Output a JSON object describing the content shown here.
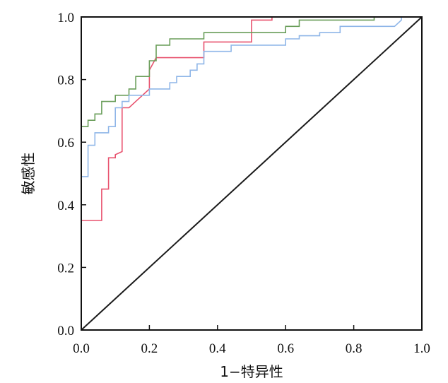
{
  "chart_data": {
    "type": "line",
    "title": "",
    "xlabel": "1−特异性",
    "ylabel": "敏感性",
    "xlim": [
      0,
      1
    ],
    "ylim": [
      0,
      1
    ],
    "xticks": [
      "0.0",
      "0.2",
      "0.4",
      "0.6",
      "0.8",
      "1.0"
    ],
    "yticks": [
      "0.0",
      "0.2",
      "0.4",
      "0.6",
      "0.8",
      "1.0"
    ],
    "grid": false,
    "legend": "none",
    "series": [
      {
        "color": "#e8526e",
        "points": [
          [
            0,
            0.35
          ],
          [
            0.06,
            0.35
          ],
          [
            0.06,
            0.45
          ],
          [
            0.08,
            0.45
          ],
          [
            0.08,
            0.55
          ],
          [
            0.1,
            0.55
          ],
          [
            0.1,
            0.56
          ],
          [
            0.12,
            0.57
          ],
          [
            0.12,
            0.71
          ],
          [
            0.14,
            0.71
          ],
          [
            0.16,
            0.73
          ],
          [
            0.2,
            0.77
          ],
          [
            0.2,
            0.83
          ],
          [
            0.22,
            0.87
          ],
          [
            0.36,
            0.87
          ],
          [
            0.36,
            0.92
          ],
          [
            0.5,
            0.92
          ],
          [
            0.5,
            0.99
          ],
          [
            0.56,
            0.99
          ],
          [
            0.56,
            1.0
          ]
        ]
      },
      {
        "color": "#6a9e5a",
        "points": [
          [
            0,
            0.65
          ],
          [
            0.02,
            0.65
          ],
          [
            0.02,
            0.67
          ],
          [
            0.04,
            0.67
          ],
          [
            0.04,
            0.69
          ],
          [
            0.06,
            0.69
          ],
          [
            0.06,
            0.73
          ],
          [
            0.1,
            0.73
          ],
          [
            0.1,
            0.75
          ],
          [
            0.14,
            0.75
          ],
          [
            0.14,
            0.77
          ],
          [
            0.16,
            0.77
          ],
          [
            0.16,
            0.81
          ],
          [
            0.2,
            0.81
          ],
          [
            0.2,
            0.86
          ],
          [
            0.22,
            0.86
          ],
          [
            0.22,
            0.91
          ],
          [
            0.26,
            0.91
          ],
          [
            0.26,
            0.93
          ],
          [
            0.36,
            0.93
          ],
          [
            0.36,
            0.95
          ],
          [
            0.6,
            0.95
          ],
          [
            0.6,
            0.97
          ],
          [
            0.64,
            0.97
          ],
          [
            0.64,
            0.99
          ],
          [
            0.86,
            0.99
          ],
          [
            0.86,
            1.0
          ]
        ]
      },
      {
        "color": "#8fb6e8",
        "points": [
          [
            0,
            0.49
          ],
          [
            0.02,
            0.49
          ],
          [
            0.02,
            0.59
          ],
          [
            0.04,
            0.59
          ],
          [
            0.04,
            0.63
          ],
          [
            0.08,
            0.63
          ],
          [
            0.08,
            0.65
          ],
          [
            0.1,
            0.65
          ],
          [
            0.1,
            0.71
          ],
          [
            0.12,
            0.71
          ],
          [
            0.12,
            0.73
          ],
          [
            0.14,
            0.73
          ],
          [
            0.14,
            0.75
          ],
          [
            0.2,
            0.75
          ],
          [
            0.2,
            0.77
          ],
          [
            0.26,
            0.77
          ],
          [
            0.26,
            0.79
          ],
          [
            0.28,
            0.79
          ],
          [
            0.28,
            0.81
          ],
          [
            0.32,
            0.81
          ],
          [
            0.32,
            0.83
          ],
          [
            0.34,
            0.83
          ],
          [
            0.34,
            0.85
          ],
          [
            0.36,
            0.85
          ],
          [
            0.36,
            0.89
          ],
          [
            0.44,
            0.89
          ],
          [
            0.44,
            0.91
          ],
          [
            0.6,
            0.91
          ],
          [
            0.6,
            0.93
          ],
          [
            0.64,
            0.93
          ],
          [
            0.64,
            0.94
          ],
          [
            0.7,
            0.94
          ],
          [
            0.7,
            0.95
          ],
          [
            0.76,
            0.95
          ],
          [
            0.76,
            0.97
          ],
          [
            0.92,
            0.97
          ],
          [
            0.94,
            0.99
          ],
          [
            0.94,
            1.0
          ]
        ]
      },
      {
        "color": "#1a1a1a",
        "points": [
          [
            0,
            0
          ],
          [
            1,
            1
          ]
        ]
      }
    ]
  }
}
